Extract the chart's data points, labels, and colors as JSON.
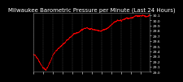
{
  "title": "Milwaukee Barometric Pressure per Minute (Last 24 Hours)",
  "line_color": "#ff0000",
  "background_color": "#000000",
  "plot_bg_color": "#000000",
  "grid_color": "#666666",
  "title_color": "#ffffff",
  "tick_color": "#ffffff",
  "spine_color": "#888888",
  "ylim": [
    29.0,
    30.15
  ],
  "ytick_vals": [
    29.0,
    29.1,
    29.2,
    29.3,
    29.4,
    29.5,
    29.6,
    29.7,
    29.8,
    29.9,
    30.0,
    30.1
  ],
  "num_points": 1440,
  "title_fontsize": 5.0,
  "tick_fontsize": 3.2,
  "num_grid_lines": 13
}
